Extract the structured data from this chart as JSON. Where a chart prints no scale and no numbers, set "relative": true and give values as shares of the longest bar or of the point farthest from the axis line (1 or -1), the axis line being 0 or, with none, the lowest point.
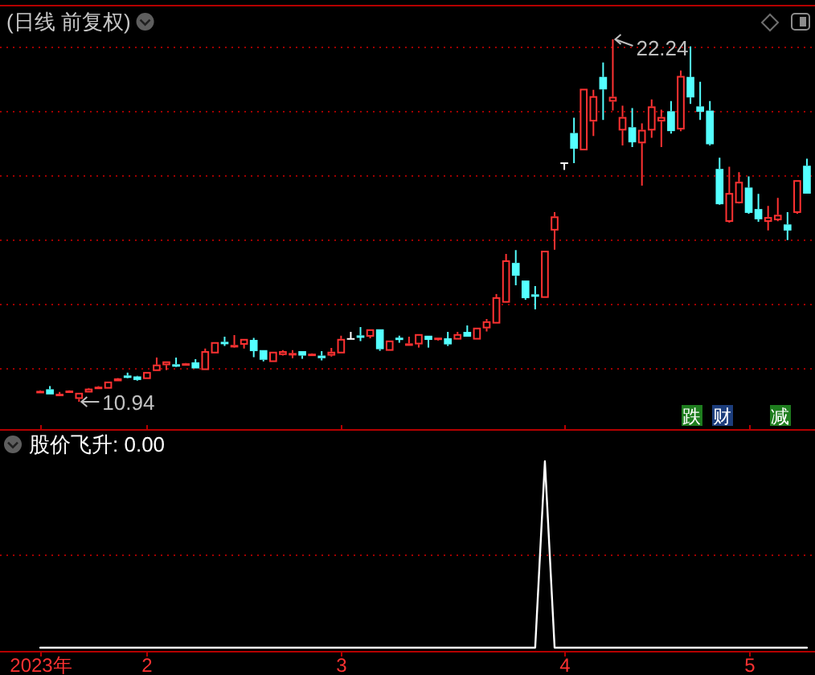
{
  "chart_data": [
    {
      "type": "candlestick",
      "title": "(日线 前复权)",
      "categories": [
        "2023年",
        null,
        null,
        null,
        null,
        null,
        null,
        null,
        null,
        null,
        null,
        "2",
        null,
        null,
        null,
        null,
        null,
        null,
        null,
        null,
        null,
        null,
        null,
        null,
        null,
        null,
        null,
        null,
        null,
        null,
        null,
        "3",
        null,
        null,
        null,
        null,
        null,
        null,
        null,
        null,
        null,
        null,
        null,
        null,
        null,
        null,
        null,
        null,
        null,
        null,
        null,
        null,
        null,
        null,
        "4",
        null,
        null,
        null,
        null,
        null,
        null,
        null,
        null,
        null,
        null,
        null,
        null,
        null,
        null,
        null,
        null,
        null,
        null,
        "5",
        null,
        null,
        null,
        null,
        null,
        null
      ],
      "ohlc": [
        [
          11.25,
          11.3,
          11.23,
          11.28
        ],
        [
          11.33,
          11.43,
          11.17,
          11.17
        ],
        [
          11.17,
          11.25,
          11.13,
          11.19
        ],
        [
          11.27,
          11.3,
          11.25,
          11.29
        ],
        [
          11.03,
          11.22,
          10.94,
          11.22
        ],
        [
          11.23,
          11.37,
          11.23,
          11.35
        ],
        [
          11.39,
          11.43,
          11.38,
          11.41
        ],
        [
          11.35,
          11.57,
          11.35,
          11.57
        ],
        [
          11.58,
          11.68,
          11.58,
          11.67
        ],
        [
          11.76,
          11.85,
          11.68,
          11.74
        ],
        [
          11.73,
          11.75,
          11.6,
          11.62
        ],
        [
          11.65,
          11.87,
          11.65,
          11.87
        ],
        [
          11.9,
          12.32,
          11.9,
          12.1
        ],
        [
          12.08,
          12.2,
          11.93,
          12.2
        ],
        [
          12.11,
          12.32,
          12.03,
          12.09
        ],
        [
          12.12,
          12.15,
          12.11,
          12.14
        ],
        [
          12.17,
          12.27,
          11.98,
          11.98
        ],
        [
          11.93,
          12.6,
          11.93,
          12.52
        ],
        [
          12.45,
          12.8,
          12.45,
          12.8
        ],
        [
          12.81,
          12.97,
          12.68,
          12.79
        ],
        [
          12.69,
          13.02,
          12.63,
          12.71
        ],
        [
          12.72,
          12.9,
          12.6,
          12.9
        ],
        [
          12.87,
          12.93,
          12.33,
          12.52
        ],
        [
          12.55,
          12.55,
          12.2,
          12.25
        ],
        [
          12.18,
          12.5,
          12.18,
          12.5
        ],
        [
          12.4,
          12.55,
          12.38,
          12.52
        ],
        [
          12.44,
          12.55,
          12.3,
          12.46
        ],
        [
          12.52,
          12.52,
          12.28,
          12.38
        ],
        [
          12.42,
          12.45,
          12.41,
          12.44
        ],
        [
          12.38,
          12.52,
          12.23,
          12.3
        ],
        [
          12.38,
          12.62,
          12.35,
          12.5
        ],
        [
          12.45,
          13.0,
          12.45,
          12.9
        ],
        [
          12.9,
          13.12,
          12.9,
          12.9
        ],
        [
          13.01,
          13.27,
          12.83,
          12.99
        ],
        [
          12.97,
          13.2,
          12.92,
          13.2
        ],
        [
          13.2,
          13.2,
          12.53,
          12.58
        ],
        [
          12.53,
          12.85,
          12.53,
          12.85
        ],
        [
          12.94,
          13.0,
          12.78,
          12.92
        ],
        [
          12.74,
          12.97,
          12.74,
          12.76
        ],
        [
          12.73,
          13.05,
          12.63,
          13.05
        ],
        [
          13.0,
          13.0,
          12.63,
          12.87
        ],
        [
          12.92,
          12.94,
          12.85,
          12.94
        ],
        [
          12.92,
          13.12,
          12.68,
          12.73
        ],
        [
          12.88,
          13.12,
          12.88,
          13.05
        ],
        [
          13.12,
          13.32,
          12.97,
          12.97
        ],
        [
          12.88,
          13.25,
          12.88,
          13.25
        ],
        [
          13.23,
          13.52,
          13.13,
          13.45
        ],
        [
          13.38,
          14.3,
          13.38,
          14.2
        ],
        [
          14.03,
          15.55,
          14.03,
          15.35
        ],
        [
          15.27,
          15.67,
          14.57,
          14.87
        ],
        [
          14.72,
          14.72,
          14.12,
          14.17
        ],
        [
          14.29,
          14.55,
          13.82,
          14.27
        ],
        [
          14.18,
          15.65,
          14.18,
          15.65
        ],
        [
          16.28,
          16.85,
          15.68,
          16.72
        ],
        [
          18.38,
          18.38,
          18.17,
          18.38
        ],
        [
          19.32,
          19.8,
          18.38,
          18.83
        ],
        [
          18.78,
          20.7,
          18.78,
          20.7
        ],
        [
          19.68,
          20.67,
          19.23,
          20.47
        ],
        [
          21.07,
          21.52,
          19.73,
          20.68
        ],
        [
          20.3,
          22.24,
          20.02,
          20.45
        ],
        [
          19.4,
          20.17,
          18.93,
          19.82
        ],
        [
          19.5,
          20.1,
          18.88,
          19.03
        ],
        [
          19.0,
          19.62,
          17.68,
          19.42
        ],
        [
          19.4,
          20.37,
          19.17,
          20.15
        ],
        [
          19.68,
          20.05,
          18.88,
          19.82
        ],
        [
          20.0,
          20.32,
          19.3,
          19.38
        ],
        [
          19.43,
          21.27,
          19.38,
          21.1
        ],
        [
          21.07,
          22.02,
          20.23,
          20.43
        ],
        [
          20.15,
          20.92,
          19.73,
          19.98
        ],
        [
          20.02,
          20.32,
          18.93,
          18.97
        ],
        [
          18.2,
          18.55,
          17.08,
          17.1
        ],
        [
          16.55,
          18.27,
          16.53,
          17.45
        ],
        [
          17.13,
          18.1,
          17.12,
          17.8
        ],
        [
          17.62,
          17.97,
          16.8,
          16.83
        ],
        [
          16.95,
          17.42,
          16.55,
          16.63
        ],
        [
          16.55,
          17.05,
          16.28,
          16.7
        ],
        [
          16.6,
          17.3,
          16.57,
          16.77
        ],
        [
          16.47,
          16.85,
          15.98,
          16.28
        ],
        [
          16.83,
          17.85,
          16.8,
          17.85
        ],
        [
          18.3,
          18.52,
          17.43,
          17.43
        ]
      ],
      "colors": [
        "#ff3232",
        "#54ffff",
        "#ff3232",
        "#ff3232",
        "#ff3232",
        "#ff3232",
        "#ff3232",
        "#ff3232",
        "#ff3232",
        "#54ffff",
        "#54ffff",
        "#ff3232",
        "#ff3232",
        "#ff3232",
        "#54ffff",
        "#ff3232",
        "#54ffff",
        "#ff3232",
        "#ff3232",
        "#54ffff",
        "#ff3232",
        "#ff3232",
        "#54ffff",
        "#54ffff",
        "#ff3232",
        "#ff3232",
        "#ff3232",
        "#54ffff",
        "#ff3232",
        "#54ffff",
        "#ff3232",
        "#ff3232",
        "#ffffff",
        "#54ffff",
        "#ff3232",
        "#54ffff",
        "#ff3232",
        "#54ffff",
        "#ff3232",
        "#ff3232",
        "#54ffff",
        "#ff3232",
        "#54ffff",
        "#ff3232",
        "#54ffff",
        "#ff3232",
        "#ff3232",
        "#ff3232",
        "#ff3232",
        "#54ffff",
        "#54ffff",
        "#54ffff",
        "#ff3232",
        "#ff3232",
        "#ffffff",
        "#54ffff",
        "#ff3232",
        "#ff3232",
        "#54ffff",
        "#ff3232",
        "#ff3232",
        "#54ffff",
        "#ff3232",
        "#ff3232",
        "#ff3232",
        "#54ffff",
        "#ff3232",
        "#54ffff",
        "#54ffff",
        "#54ffff",
        "#54ffff",
        "#ff3232",
        "#ff3232",
        "#54ffff",
        "#54ffff",
        "#ff3232",
        "#ff3232",
        "#54ffff",
        "#ff3232",
        "#54ffff"
      ],
      "ref_lines": [
        {
          "axis": "y",
          "value": 12,
          "color": "#a00000",
          "line_style": "dotted"
        },
        {
          "axis": "y",
          "value": 14,
          "color": "#a00000",
          "line_style": "dotted"
        },
        {
          "axis": "y",
          "value": 16,
          "color": "#a00000",
          "line_style": "dotted"
        },
        {
          "axis": "y",
          "value": 18,
          "color": "#a00000",
          "line_style": "dotted"
        },
        {
          "axis": "y",
          "value": 20,
          "color": "#a00000",
          "line_style": "dotted"
        },
        {
          "axis": "y",
          "value": 22,
          "color": "#a00000",
          "line_style": "dotted"
        }
      ],
      "tick_labels": false,
      "annotations": [
        {
          "text": "22.24",
          "y": 22.24
        },
        "10.94",
        "跌",
        "财",
        "减"
      ]
    },
    {
      "type": "line",
      "title": "股价飞升: 0.00",
      "categories": [
        "2023年",
        null,
        null,
        null,
        null,
        null,
        null,
        null,
        null,
        null,
        null,
        "2",
        null,
        null,
        null,
        null,
        null,
        null,
        null,
        null,
        null,
        null,
        null,
        null,
        null,
        null,
        null,
        null,
        null,
        null,
        null,
        "3",
        null,
        null,
        null,
        null,
        null,
        null,
        null,
        null,
        null,
        null,
        null,
        null,
        null,
        null,
        null,
        null,
        null,
        null,
        null,
        null,
        null,
        null,
        "4",
        null,
        null,
        null,
        null,
        null,
        null,
        null,
        null,
        null,
        null,
        null,
        null,
        null,
        null,
        null,
        null,
        null,
        null,
        "5",
        null,
        null,
        null,
        null,
        null,
        null
      ],
      "relative": true,
      "series": [
        {
          "color": "#ffffff",
          "values": [
            0,
            0,
            0,
            0,
            0,
            0,
            0,
            0,
            0,
            0,
            0,
            0,
            0,
            0,
            0,
            0,
            0,
            0,
            0,
            0,
            0,
            0,
            0,
            0,
            0,
            0,
            0,
            0,
            0,
            0,
            0,
            0,
            0,
            0,
            0,
            0,
            0,
            0,
            0,
            0,
            0,
            0,
            0,
            0,
            0,
            0,
            0,
            0,
            0,
            0,
            0,
            0,
            1,
            0,
            0,
            0,
            0,
            0,
            0,
            0,
            0,
            0,
            0,
            0,
            0,
            0,
            0,
            0,
            0,
            0,
            0,
            0,
            0,
            0,
            0,
            0,
            0,
            0,
            0,
            0
          ]
        }
      ],
      "ref_lines": [
        {
          "axis": "y",
          "value": 0.5,
          "color": "#a00000",
          "line_style": "dotted"
        }
      ],
      "tick_labels": "x"
    }
  ]
}
